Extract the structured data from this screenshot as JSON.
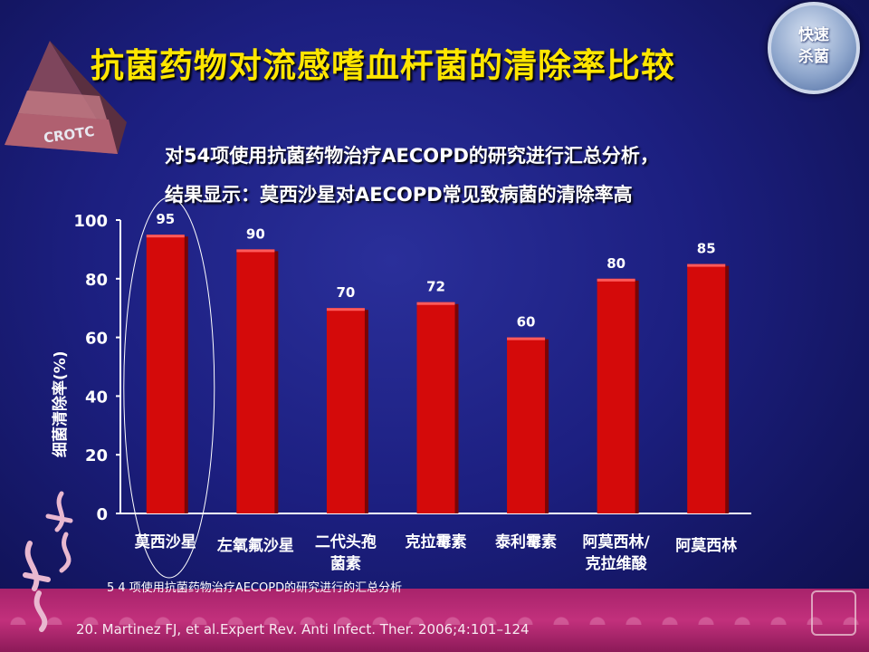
{
  "header": {
    "title": "抗菌药物对流感嗜血杆菌的清除率比较",
    "subtitle_line1": "对54项使用抗菌药物治疗AECOPD的研究进行汇总分析，",
    "subtitle_line2": "结果显示：莫西沙星对AECOPD常见致病菌的清除率高"
  },
  "badge": {
    "line1": "快速",
    "line2": "杀菌"
  },
  "logo": {
    "text": "CROTC"
  },
  "chart_data": {
    "type": "bar",
    "categories": [
      "莫西沙星",
      "左氧氟沙星",
      "二代头孢菌素",
      "克拉霉素",
      "泰利霉素",
      "阿莫西林/克拉维酸",
      "阿莫西林"
    ],
    "category_label_lines": [
      [
        "莫西沙星"
      ],
      [
        "左氧氟沙星"
      ],
      [
        "二代头孢",
        "菌素"
      ],
      [
        "克拉霉素"
      ],
      [
        "泰利霉素"
      ],
      [
        "阿莫西林/",
        "克拉维酸"
      ],
      [
        "阿莫西林"
      ]
    ],
    "values": [
      95,
      90,
      70,
      72,
      60,
      80,
      85
    ],
    "data_labels": [
      "95",
      "90",
      "70",
      "72",
      "60",
      "80",
      "85"
    ],
    "ylabel": "细菌清除率(%)",
    "ylim": [
      0,
      100
    ],
    "yticks": [
      0,
      20,
      40,
      60,
      80,
      100
    ],
    "bar_color": "#d40a0a",
    "highlight_category": "莫西沙星"
  },
  "footnote": "5 4 项使用抗菌药物治疗AECOPD的研究进行的汇总分析",
  "reference": "20. Martinez FJ, et al.Expert Rev. Anti Infect. Ther. 2006;4:101–124",
  "colors": {
    "title": "#ffe600",
    "background": "#1c1f80",
    "band": "#b82a74"
  }
}
